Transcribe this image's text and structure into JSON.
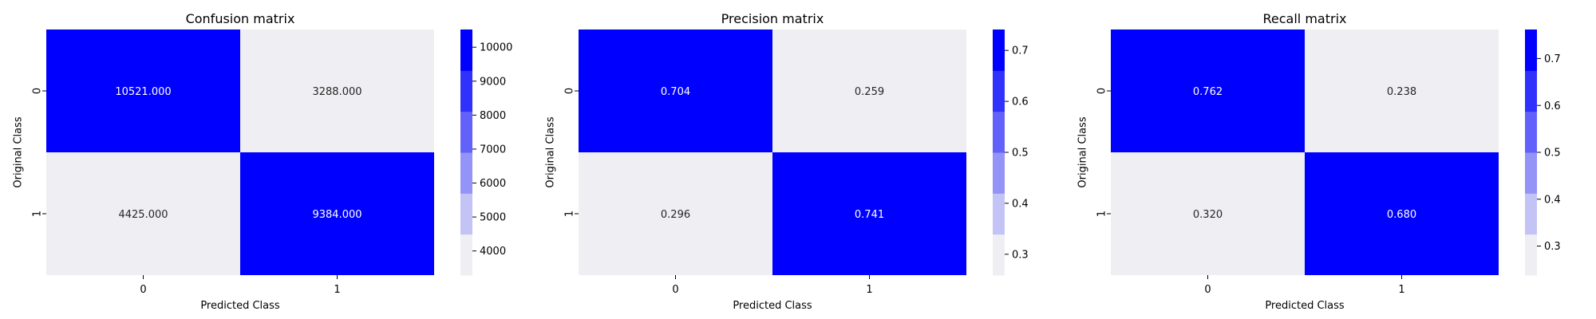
{
  "chart_data": [
    {
      "type": "heatmap",
      "title": "Confusion matrix",
      "xlabel": "Predicted Class",
      "ylabel": "Original Class",
      "x_categories": [
        "0",
        "1"
      ],
      "y_categories": [
        "0",
        "1"
      ],
      "values": [
        [
          10521.0,
          3288.0
        ],
        [
          4425.0,
          9384.0
        ]
      ],
      "cell_labels": [
        [
          "10521.000",
          "3288.000"
        ],
        [
          "4425.000",
          "9384.000"
        ]
      ],
      "colorbar": {
        "vmin": 3288.0,
        "vmax": 10521.0,
        "ticks": [
          4000,
          5000,
          6000,
          7000,
          8000,
          9000,
          10000
        ],
        "tick_labels": [
          "4000",
          "5000",
          "6000",
          "7000",
          "8000",
          "9000",
          "10000"
        ]
      }
    },
    {
      "type": "heatmap",
      "title": "Precision matrix",
      "xlabel": "Predicted Class",
      "ylabel": "Original Class",
      "x_categories": [
        "0",
        "1"
      ],
      "y_categories": [
        "0",
        "1"
      ],
      "values": [
        [
          0.704,
          0.259
        ],
        [
          0.296,
          0.741
        ]
      ],
      "cell_labels": [
        [
          "0.704",
          "0.259"
        ],
        [
          "0.296",
          "0.741"
        ]
      ],
      "colorbar": {
        "vmin": 0.259,
        "vmax": 0.741,
        "ticks": [
          0.3,
          0.4,
          0.5,
          0.6,
          0.7
        ],
        "tick_labels": [
          "0.3",
          "0.4",
          "0.5",
          "0.6",
          "0.7"
        ]
      }
    },
    {
      "type": "heatmap",
      "title": "Recall matrix",
      "xlabel": "Predicted Class",
      "ylabel": "Original Class",
      "x_categories": [
        "0",
        "1"
      ],
      "y_categories": [
        "0",
        "1"
      ],
      "values": [
        [
          0.762,
          0.238
        ],
        [
          0.32,
          0.68
        ]
      ],
      "cell_labels": [
        [
          "0.762",
          "0.238"
        ],
        [
          "0.320",
          "0.680"
        ]
      ],
      "colorbar": {
        "vmin": 0.238,
        "vmax": 0.762,
        "ticks": [
          0.3,
          0.4,
          0.5,
          0.6,
          0.7
        ],
        "tick_labels": [
          "0.3",
          "0.4",
          "0.5",
          "0.6",
          "0.7"
        ]
      }
    }
  ],
  "colors": {
    "palette": [
      "#efeff3",
      "#c3c3f5",
      "#9393f8",
      "#6262fa",
      "#3131fd",
      "#0000ff"
    ],
    "high_text": "#ffffff",
    "low_text": "#262626"
  }
}
